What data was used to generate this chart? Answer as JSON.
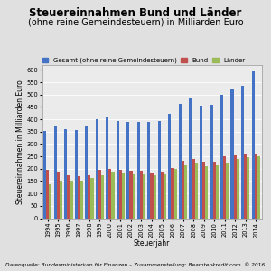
{
  "title": "Steuereinnahmen Bund und Länder",
  "subtitle": "(ohne reine Gemeindesteuern) in Milliarden Euro",
  "xlabel": "Steuerjahr",
  "ylabel": "Steuereinnahmen in Milliarden Euro",
  "footer": "Datenquelle: Bundesministerium für Finanzen – Zusammenstellung: Beamtenkredit.com  © 2016",
  "years": [
    1994,
    1995,
    1996,
    1997,
    1998,
    1999,
    2000,
    2001,
    2002,
    2003,
    2004,
    2005,
    2006,
    2007,
    2008,
    2009,
    2010,
    2011,
    2012,
    2013,
    2014
  ],
  "gesamt": [
    354,
    370,
    362,
    358,
    374,
    400,
    413,
    394,
    388,
    391,
    388,
    394,
    422,
    464,
    484,
    457,
    460,
    500,
    522,
    537,
    593
  ],
  "bund": [
    194,
    188,
    172,
    170,
    174,
    194,
    200,
    194,
    193,
    193,
    186,
    188,
    204,
    232,
    239,
    228,
    229,
    251,
    256,
    259,
    261
  ],
  "laender": [
    138,
    152,
    153,
    152,
    162,
    175,
    187,
    183,
    176,
    176,
    174,
    179,
    198,
    215,
    225,
    211,
    213,
    226,
    240,
    248,
    249
  ],
  "color_gesamt": "#4472C4",
  "color_bund": "#C0504D",
  "color_laender": "#9BBB59",
  "legend_gesamt": "Gesamt (ohne reine Gemeindesteuern)",
  "legend_bund": "Bund",
  "legend_laender": "Länder",
  "ylim": [
    0,
    620
  ],
  "yticks": [
    0,
    50,
    100,
    150,
    200,
    250,
    300,
    350,
    400,
    450,
    500,
    550,
    600
  ],
  "bg_color": "#E0E0E0",
  "plot_bg_color": "#EBEBEB",
  "border_color": "#999999",
  "title_fontsize": 8.5,
  "subtitle_fontsize": 7.0,
  "label_fontsize": 5.5,
  "tick_fontsize": 4.8,
  "legend_fontsize": 5.0,
  "footer_fontsize": 4.2
}
